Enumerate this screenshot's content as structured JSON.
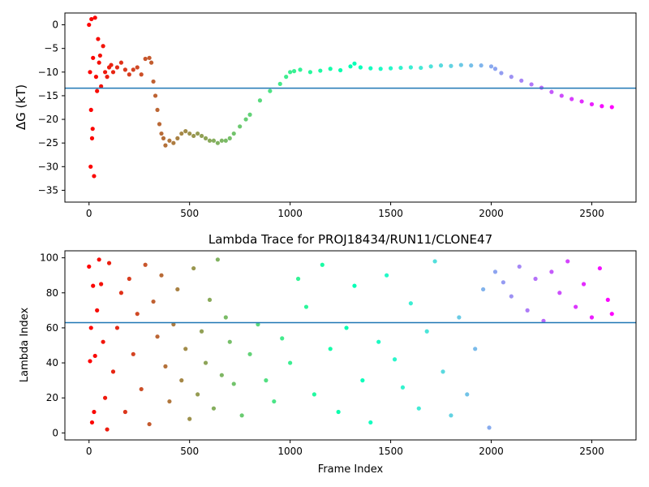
{
  "chart_data": [
    {
      "type": "scatter",
      "title": "",
      "xlabel": "",
      "ylabel": "ΔG (kT)",
      "xlim": [
        -120,
        2720
      ],
      "ylim": [
        -37.5,
        2.5
      ],
      "xticks": [
        0,
        500,
        1000,
        1500,
        2000,
        2500
      ],
      "yticks": [
        0,
        -5,
        -10,
        -15,
        -20,
        -25,
        -30,
        -35
      ],
      "hline": -13.4,
      "colormap": "rainbow",
      "color_range_frames": [
        0,
        2600
      ],
      "series": [
        {
          "x": [
            0,
            5,
            8,
            10,
            12,
            15,
            18,
            20,
            25,
            30,
            35,
            40,
            45,
            50,
            55,
            60,
            70,
            80,
            90,
            100,
            110,
            120,
            140,
            160,
            180,
            200,
            220,
            240,
            260,
            280,
            300,
            310,
            320,
            330,
            340,
            350,
            360,
            370,
            380,
            400,
            420,
            440,
            460,
            480,
            500,
            520,
            540,
            560,
            580,
            600,
            620,
            640,
            660,
            680,
            700,
            720,
            750,
            780,
            800,
            850,
            900,
            950,
            980,
            1000,
            1020,
            1050,
            1100,
            1150,
            1200,
            1250,
            1300,
            1320,
            1350,
            1400,
            1450,
            1500,
            1550,
            1600,
            1650,
            1700,
            1750,
            1800,
            1850,
            1900,
            1950,
            2000,
            2020,
            2050,
            2100,
            2150,
            2200,
            2250,
            2300,
            2350,
            2400,
            2450,
            2500,
            2550,
            2600
          ],
          "y": [
            0,
            -10,
            -30,
            -18,
            1.2,
            -24,
            -22,
            -7,
            -32,
            1.5,
            -11,
            -14,
            -3,
            -8,
            -6.5,
            -13,
            -4.5,
            -10,
            -11,
            -9,
            -8.5,
            -10,
            -9,
            -8,
            -9.5,
            -10.5,
            -9.5,
            -9,
            -10.5,
            -7.2,
            -7,
            -8,
            -12,
            -15,
            -18,
            -21,
            -23,
            -24,
            -25.5,
            -24.5,
            -25,
            -24,
            -23,
            -22.5,
            -23,
            -23.5,
            -23,
            -23.5,
            -24,
            -24.5,
            -24.5,
            -25,
            -24.5,
            -24.5,
            -24,
            -23,
            -21.5,
            -20,
            -19,
            -16,
            -14,
            -12.5,
            -11,
            -10,
            -9.8,
            -9.5,
            -10,
            -9.7,
            -9.3,
            -9.6,
            -8.8,
            -8.2,
            -9,
            -9.2,
            -9.3,
            -9.2,
            -9.1,
            -9.0,
            -9.1,
            -8.8,
            -8.6,
            -8.7,
            -8.5,
            -8.6,
            -8.6,
            -8.8,
            -9.3,
            -10.2,
            -11,
            -11.8,
            -12.6,
            -13.3,
            -14.2,
            -15,
            -15.7,
            -16.2,
            -16.8,
            -17.2,
            -17.4
          ]
        }
      ]
    },
    {
      "type": "scatter",
      "title": "Lambda Trace for PROJ18434/RUN11/CLONE47",
      "xlabel": "Frame Index",
      "ylabel": "Lambda Index",
      "xlim": [
        -120,
        2720
      ],
      "ylim": [
        -4,
        104
      ],
      "xticks": [
        0,
        500,
        1000,
        1500,
        2000,
        2500
      ],
      "yticks": [
        0,
        20,
        40,
        60,
        80,
        100
      ],
      "hline": 63,
      "colormap": "rainbow",
      "color_range_frames": [
        0,
        2600
      ],
      "series": [
        {
          "x": [
            0,
            5,
            10,
            15,
            20,
            25,
            30,
            40,
            50,
            60,
            70,
            80,
            90,
            100,
            120,
            140,
            160,
            180,
            200,
            220,
            240,
            260,
            280,
            300,
            320,
            340,
            360,
            380,
            400,
            420,
            440,
            460,
            480,
            500,
            520,
            540,
            560,
            580,
            600,
            620,
            640,
            660,
            680,
            700,
            720,
            760,
            800,
            840,
            880,
            920,
            960,
            1000,
            1040,
            1080,
            1120,
            1160,
            1200,
            1240,
            1280,
            1320,
            1360,
            1400,
            1440,
            1480,
            1520,
            1560,
            1600,
            1640,
            1680,
            1720,
            1760,
            1800,
            1840,
            1880,
            1920,
            1960,
            1990,
            2020,
            2060,
            2100,
            2140,
            2180,
            2220,
            2260,
            2300,
            2340,
            2380,
            2420,
            2460,
            2500,
            2540,
            2580,
            2600
          ],
          "y": [
            95,
            41,
            60,
            6,
            84,
            12,
            44,
            70,
            99,
            85,
            52,
            20,
            2,
            97,
            35,
            60,
            80,
            12,
            88,
            45,
            68,
            25,
            96,
            5,
            75,
            55,
            90,
            38,
            18,
            62,
            82,
            30,
            48,
            8,
            94,
            22,
            58,
            40,
            76,
            14,
            99,
            33,
            66,
            52,
            28,
            10,
            45,
            62,
            30,
            18,
            54,
            40,
            88,
            72,
            22,
            96,
            48,
            12,
            60,
            84,
            30,
            6,
            52,
            90,
            42,
            26,
            74,
            14,
            58,
            98,
            35,
            10,
            66,
            22,
            48,
            82,
            3,
            92,
            86,
            78,
            95,
            70,
            88,
            64,
            92,
            80,
            98,
            72,
            85,
            66,
            94,
            76,
            68
          ]
        }
      ]
    }
  ]
}
